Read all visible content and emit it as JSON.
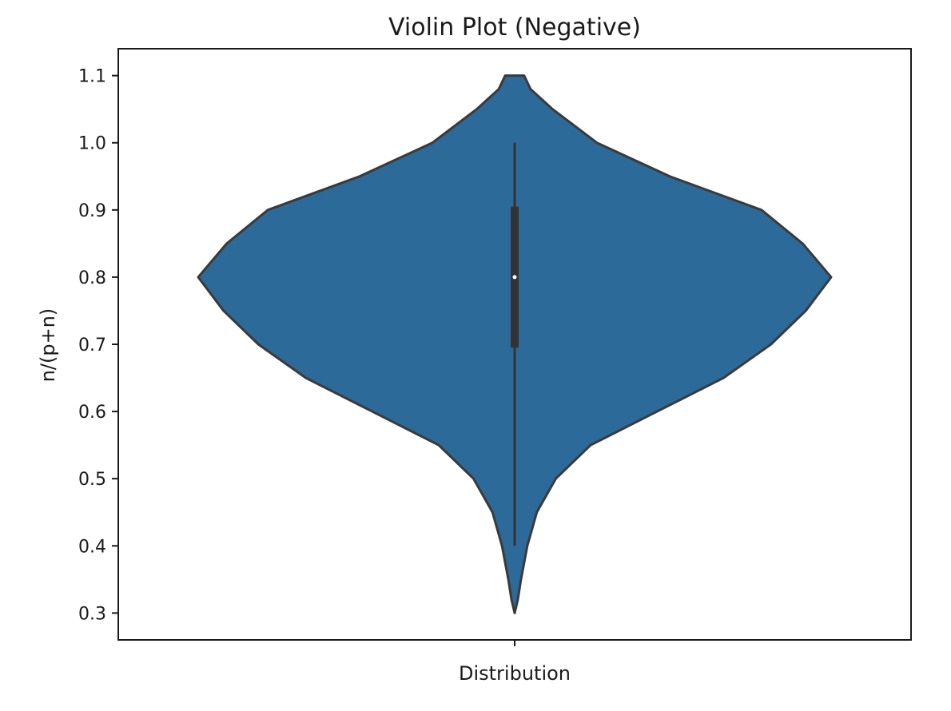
{
  "chart_data": {
    "type": "violin",
    "title": "Violin Plot (Negative)",
    "xlabel": "",
    "ylabel": "n/(p+n)",
    "categories": [
      "Distribution"
    ],
    "ylim": [
      0.26,
      1.14
    ],
    "yticks": [
      0.3,
      0.4,
      0.5,
      0.6,
      0.7,
      0.8,
      0.9,
      1.0,
      1.1
    ],
    "ytick_labels": [
      "0.3",
      "0.4",
      "0.5",
      "0.6",
      "0.7",
      "0.8",
      "0.9",
      "1.0",
      "1.1"
    ],
    "grid": false,
    "violin": {
      "min": 0.3,
      "max": 1.1,
      "whisker_low": 0.4,
      "whisker_high": 1.0,
      "q1": 0.695,
      "median": 0.8,
      "q3": 0.905,
      "density_profile": [
        {
          "y": 0.3,
          "w": 0.0
        },
        {
          "y": 0.32,
          "w": 0.01
        },
        {
          "y": 0.35,
          "w": 0.02
        },
        {
          "y": 0.4,
          "w": 0.04
        },
        {
          "y": 0.45,
          "w": 0.07
        },
        {
          "y": 0.5,
          "w": 0.13
        },
        {
          "y": 0.55,
          "w": 0.24
        },
        {
          "y": 0.6,
          "w": 0.45
        },
        {
          "y": 0.65,
          "w": 0.66
        },
        {
          "y": 0.7,
          "w": 0.81
        },
        {
          "y": 0.75,
          "w": 0.92
        },
        {
          "y": 0.8,
          "w": 1.0
        },
        {
          "y": 0.85,
          "w": 0.91
        },
        {
          "y": 0.9,
          "w": 0.78
        },
        {
          "y": 0.95,
          "w": 0.49
        },
        {
          "y": 1.0,
          "w": 0.26
        },
        {
          "y": 1.05,
          "w": 0.12
        },
        {
          "y": 1.08,
          "w": 0.05
        },
        {
          "y": 1.1,
          "w": 0.03
        }
      ]
    },
    "colors": {
      "fill": "#2c6a99",
      "outline": "#3a3a3a",
      "box": "#333333",
      "median_dot": "#ffffff",
      "axes": "#1a1a1a"
    }
  }
}
